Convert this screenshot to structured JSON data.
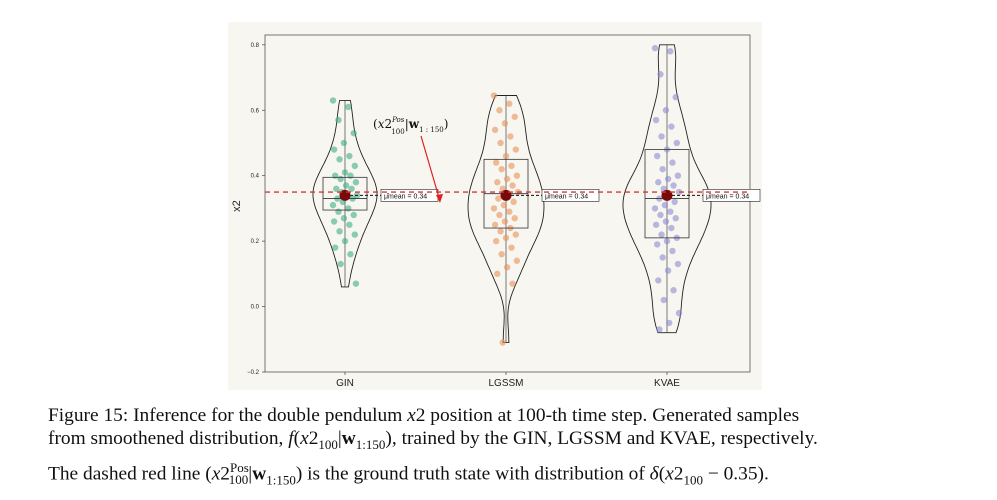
{
  "chart_data": {
    "type": "violin",
    "ylabel": "x2",
    "ylim": [
      -0.2,
      0.83
    ],
    "yticks": [
      "−0.2",
      "0.0",
      "0.2",
      "0.4",
      "0.6",
      "0.8"
    ],
    "ytick_values": [
      -0.2,
      0.0,
      0.2,
      0.4,
      0.6,
      0.8
    ],
    "categories": [
      "GIN",
      "LGSSM",
      "KVAE"
    ],
    "ground_truth": 0.35,
    "series": [
      {
        "category": "GIN",
        "color": "#3fae8a",
        "min": 0.06,
        "q1": 0.295,
        "median": 0.33,
        "q3": 0.395,
        "max": 0.63,
        "mean": 0.34,
        "mean_label": "μ̂mean = 0.34",
        "samples": [
          0.63,
          0.61,
          0.57,
          0.53,
          0.5,
          0.48,
          0.46,
          0.45,
          0.43,
          0.41,
          0.4,
          0.4,
          0.39,
          0.38,
          0.37,
          0.36,
          0.36,
          0.35,
          0.34,
          0.34,
          0.33,
          0.33,
          0.32,
          0.31,
          0.3,
          0.29,
          0.28,
          0.27,
          0.26,
          0.25,
          0.23,
          0.22,
          0.2,
          0.18,
          0.16,
          0.13,
          0.07
        ]
      },
      {
        "category": "LGSSM",
        "color": "#e8925a",
        "min": -0.11,
        "q1": 0.24,
        "median": 0.345,
        "q3": 0.45,
        "max": 0.645,
        "mean": 0.34,
        "mean_label": "μ̂mean = 0.34",
        "samples": [
          0.645,
          0.62,
          0.6,
          0.58,
          0.56,
          0.54,
          0.52,
          0.5,
          0.48,
          0.46,
          0.44,
          0.43,
          0.42,
          0.4,
          0.39,
          0.38,
          0.37,
          0.36,
          0.35,
          0.34,
          0.33,
          0.32,
          0.31,
          0.3,
          0.29,
          0.28,
          0.27,
          0.26,
          0.25,
          0.24,
          0.23,
          0.22,
          0.21,
          0.2,
          0.18,
          0.16,
          0.14,
          0.12,
          0.1,
          0.07,
          -0.11
        ]
      },
      {
        "category": "KVAE",
        "color": "#8c8cd0",
        "min": -0.08,
        "q1": 0.21,
        "median": 0.33,
        "q3": 0.48,
        "max": 0.8,
        "mean": 0.34,
        "mean_label": "μ̂mean = 0.34",
        "samples": [
          0.79,
          0.78,
          0.71,
          0.64,
          0.6,
          0.57,
          0.55,
          0.52,
          0.5,
          0.48,
          0.46,
          0.44,
          0.42,
          0.4,
          0.39,
          0.38,
          0.37,
          0.36,
          0.35,
          0.34,
          0.33,
          0.32,
          0.31,
          0.3,
          0.29,
          0.28,
          0.27,
          0.26,
          0.25,
          0.24,
          0.22,
          0.21,
          0.2,
          0.19,
          0.17,
          0.15,
          0.13,
          0.11,
          0.08,
          0.05,
          0.02,
          -0.02,
          -0.05,
          -0.07
        ]
      }
    ],
    "annotation": "(x2^{Pos}_{100}|w_{1:150})"
  },
  "caption": {
    "line1": "Figure 15: Inference for the double pendulum x2 position at 100-th time step. Generated samples",
    "line2": "from smoothened distribution, f(x2₁₀₀|w₁:₁₅₀), trained by the GIN, LGSSM and KVAE, respectively.",
    "line3": "The dashed red line (x2ᴾᵒˢ₁₀₀|w₁:₁₅₀) is the ground truth state with distribution of δ(x2₁₀₀ − 0.35)."
  }
}
